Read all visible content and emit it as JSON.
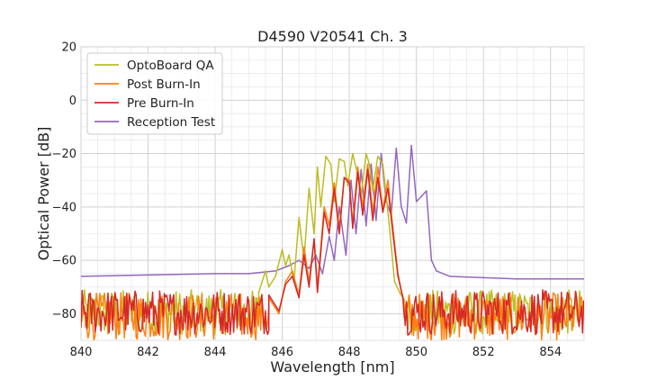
{
  "chart_data": {
    "type": "line",
    "title": "D4590 V20541 Ch. 3",
    "xlabel": "Wavelength [nm]",
    "ylabel": "Optical Power [dB]",
    "xlim": [
      840,
      855
    ],
    "ylim": [
      -90,
      20
    ],
    "xticks": [
      840,
      842,
      844,
      846,
      848,
      850,
      852,
      854
    ],
    "yticks": [
      20,
      0,
      -20,
      -40,
      -60,
      -80
    ],
    "xtick_labels": [
      "840",
      "842",
      "844",
      "846",
      "848",
      "850",
      "852",
      "854"
    ],
    "ytick_labels": [
      "20",
      "0",
      "−20",
      "−40",
      "−60",
      "−80"
    ],
    "grid": true,
    "legend_position": "top-left",
    "series": [
      {
        "name": "OptoBoard QA",
        "color": "#bcbd22",
        "noise_floor": [
          -88,
          -71
        ],
        "x": [
          845.3,
          845.5,
          845.6,
          845.8,
          846.0,
          846.1,
          846.2,
          846.35,
          846.5,
          846.65,
          846.8,
          846.95,
          847.05,
          847.15,
          847.3,
          847.45,
          847.55,
          847.7,
          847.85,
          847.95,
          848.1,
          848.25,
          848.35,
          848.5,
          848.6,
          848.7,
          848.85,
          849.0,
          849.2,
          849.35,
          849.5,
          849.65
        ],
        "y": [
          -72,
          -64,
          -70,
          -66,
          -56,
          -62,
          -58,
          -68,
          -44,
          -60,
          -33,
          -50,
          -25,
          -40,
          -21,
          -24,
          -38,
          -22,
          -23,
          -32,
          -20,
          -28,
          -36,
          -20,
          -24,
          -34,
          -21,
          -24,
          -48,
          -68,
          -72,
          -75
        ]
      },
      {
        "name": "Post Burn-In",
        "color": "#ff7f0e",
        "noise_floor": [
          -90,
          -72
        ],
        "x": [
          845.6,
          845.9,
          846.1,
          846.3,
          846.5,
          846.65,
          846.8,
          846.95,
          847.05,
          847.25,
          847.4,
          847.55,
          847.7,
          847.85,
          848.0,
          848.1,
          848.25,
          848.4,
          848.55,
          848.7,
          848.85,
          849.0,
          849.15,
          849.3,
          849.45,
          849.6
        ],
        "y": [
          -74,
          -80,
          -68,
          -64,
          -73,
          -55,
          -68,
          -52,
          -70,
          -40,
          -47,
          -31,
          -48,
          -29,
          -30,
          -46,
          -25,
          -40,
          -24,
          -42,
          -25,
          -41,
          -30,
          -48,
          -65,
          -75
        ]
      },
      {
        "name": "Pre Burn-In",
        "color": "#d62728",
        "noise_floor": [
          -88,
          -71
        ],
        "x": [
          845.6,
          845.9,
          846.1,
          846.3,
          846.5,
          846.65,
          846.8,
          846.95,
          847.05,
          847.25,
          847.4,
          847.55,
          847.7,
          847.85,
          848.0,
          848.1,
          848.25,
          848.4,
          848.55,
          848.7,
          848.85,
          849.0,
          849.15,
          849.3,
          849.45,
          849.6
        ],
        "y": [
          -73,
          -79,
          -69,
          -66,
          -74,
          -58,
          -70,
          -52,
          -72,
          -42,
          -50,
          -33,
          -50,
          -29,
          -31,
          -48,
          -27,
          -43,
          -26,
          -45,
          -29,
          -42,
          -33,
          -50,
          -66,
          -74
        ]
      },
      {
        "name": "Reception Test",
        "color": "#9467bd",
        "x": [
          840.0,
          842.0,
          844.0,
          845.0,
          845.8,
          846.2,
          846.5,
          846.8,
          847.0,
          847.2,
          847.4,
          847.55,
          847.7,
          847.9,
          848.05,
          848.2,
          848.35,
          848.5,
          848.65,
          848.8,
          848.95,
          849.1,
          849.25,
          849.4,
          849.55,
          849.7,
          849.85,
          850.0,
          850.15,
          850.3,
          850.45,
          850.6,
          851.0,
          852.0,
          853.0,
          854.0,
          855.0
        ],
        "y": [
          -66,
          -65.5,
          -65,
          -65,
          -64,
          -62,
          -60,
          -63,
          -58,
          -65,
          -51,
          -60,
          -40,
          -58,
          -30,
          -50,
          -26,
          -47,
          -24,
          -45,
          -20,
          -38,
          -43,
          -18,
          -40,
          -46,
          -17,
          -38,
          -36,
          -34,
          -60,
          -64,
          -66,
          -66.5,
          -67,
          -67,
          -67
        ]
      }
    ]
  }
}
